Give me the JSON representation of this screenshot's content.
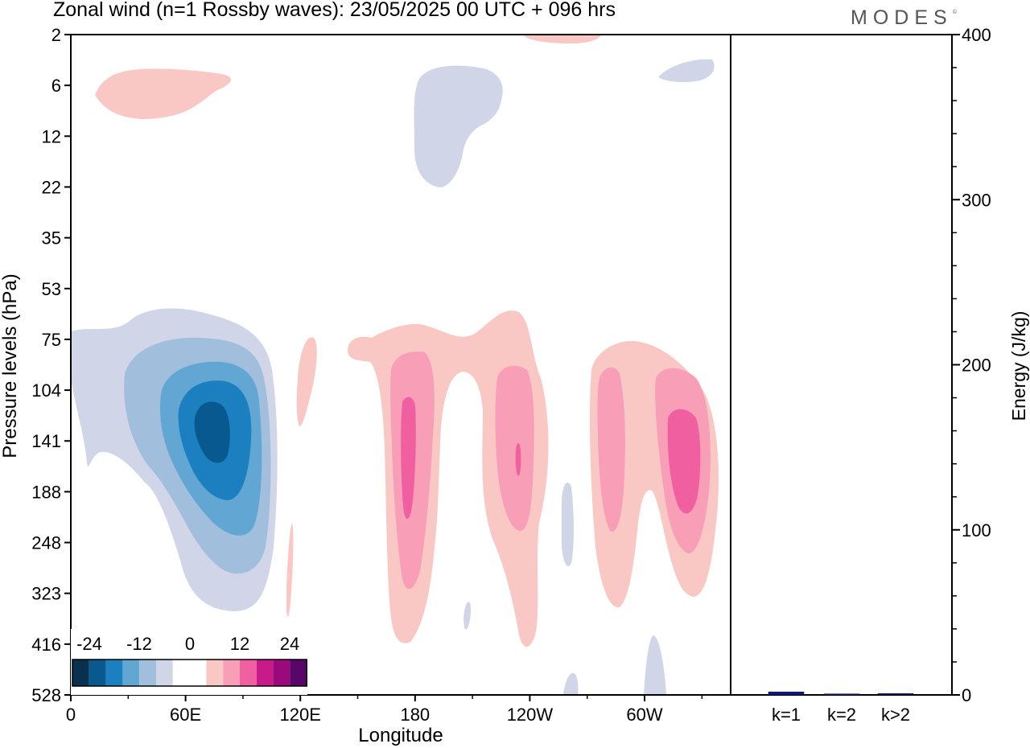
{
  "title": "Zonal wind (n=1 Rossby waves):  23/05/2025  00 UTC  + 096 hrs",
  "logo_text": "MODES",
  "logo_mark": "©",
  "chart_data": [
    {
      "type": "heatmap",
      "title": "Zonal wind (n=1 Rossby waves):  23/05/2025  00 UTC  + 096 hrs",
      "xlabel": "Longitude",
      "ylabel": "Pressure levels (hPa)",
      "x_ticks": [
        "0",
        "60E",
        "120E",
        "180",
        "120W",
        "60W"
      ],
      "y_ticks": [
        "2",
        "6",
        "12",
        "22",
        "35",
        "53",
        "75",
        "104",
        "141",
        "188",
        "248",
        "323",
        "416",
        "528"
      ],
      "colorbar_labels": [
        "-24",
        "-12",
        "0",
        "12",
        "24"
      ],
      "colorbar_colors": [
        "#08304f",
        "#08598f",
        "#1c80c0",
        "#62a6d4",
        "#a2bedd",
        "#d1d5e8",
        "#ffffff",
        "#ffffff",
        "#fac8c4",
        "#f89eb6",
        "#f05fa0",
        "#c81a88",
        "#9a0a7c",
        "#580768"
      ],
      "features": [
        {
          "lon": 80,
          "level": "141",
          "value": -24,
          "sign": "negative"
        },
        {
          "lon": 184,
          "level": "141",
          "value": 16,
          "sign": "positive"
        },
        {
          "lon": 237,
          "level": "141",
          "value": 16,
          "sign": "positive"
        },
        {
          "lon": 305,
          "level": "141",
          "value": 16,
          "sign": "positive"
        },
        {
          "lon": 195,
          "level": "12",
          "value": -4,
          "sign": "negative"
        },
        {
          "lon": 27,
          "level": "6",
          "value": 4,
          "sign": "positive"
        }
      ]
    },
    {
      "type": "bar",
      "ylabel": "Energy (J/kg)",
      "categories": [
        "k=1",
        "k=2",
        "k>2"
      ],
      "values": [
        1.8,
        0.6,
        0.8
      ],
      "ylim": [
        0,
        400
      ],
      "y_ticks": [
        "0",
        "100",
        "200",
        "300",
        "400"
      ],
      "bar_color": "#0a1a8a"
    }
  ]
}
